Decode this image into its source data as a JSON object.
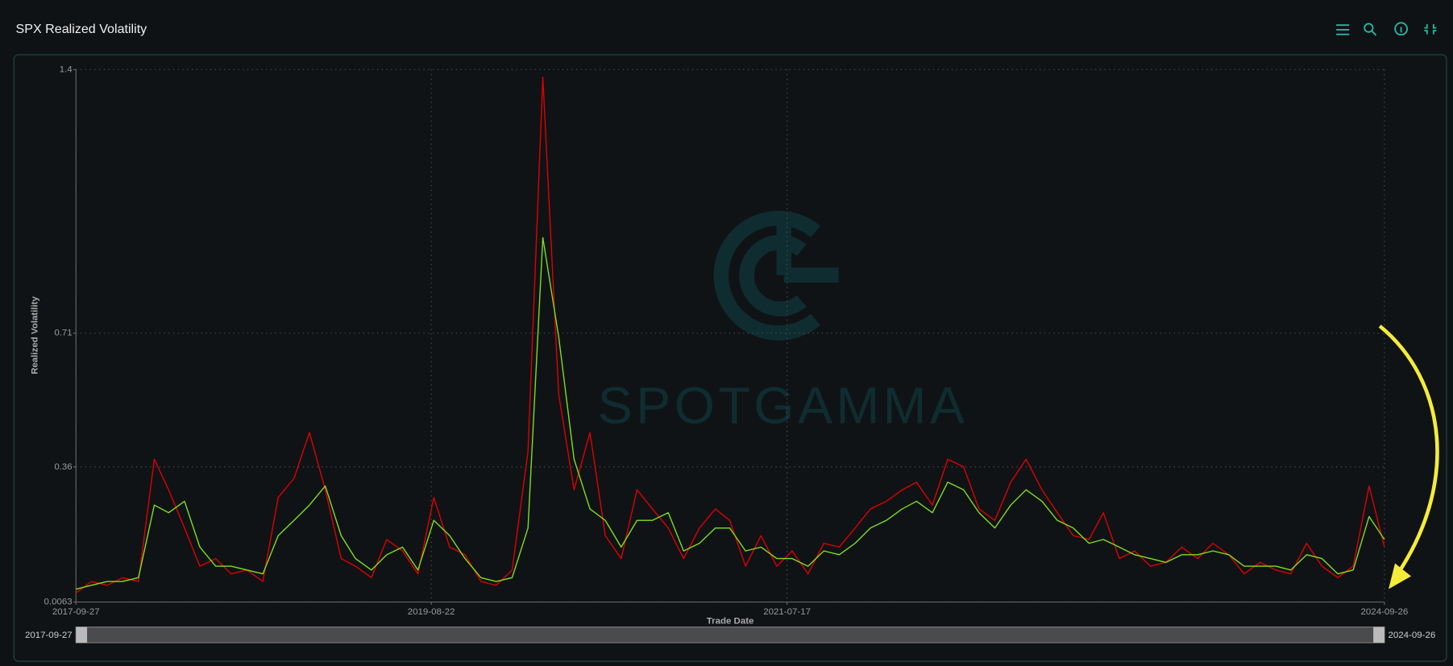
{
  "chart_data": {
    "type": "line",
    "title": "SPX Realized Volatility",
    "xlabel": "Trade Date",
    "ylabel": "Realized Volatility",
    "watermark": "SPOTGAMMA",
    "x": [
      "2017-09-27",
      "2017-10-27",
      "2017-11-27",
      "2017-12-27",
      "2018-01-27",
      "2018-02-27",
      "2018-03-27",
      "2018-04-27",
      "2018-05-27",
      "2018-06-27",
      "2018-07-27",
      "2018-08-27",
      "2018-09-27",
      "2018-10-27",
      "2018-11-27",
      "2018-12-27",
      "2019-01-27",
      "2019-02-27",
      "2019-03-27",
      "2019-04-27",
      "2019-05-27",
      "2019-06-27",
      "2019-07-27",
      "2019-08-27",
      "2019-09-27",
      "2019-10-27",
      "2019-11-27",
      "2019-12-27",
      "2020-01-27",
      "2020-02-27",
      "2020-03-27",
      "2020-04-27",
      "2020-05-27",
      "2020-06-27",
      "2020-07-27",
      "2020-08-27",
      "2020-09-27",
      "2020-10-27",
      "2020-11-27",
      "2020-12-27",
      "2021-01-27",
      "2021-02-27",
      "2021-03-27",
      "2021-04-27",
      "2021-05-27",
      "2021-06-27",
      "2021-07-27",
      "2021-08-27",
      "2021-09-27",
      "2021-10-27",
      "2021-11-27",
      "2021-12-27",
      "2022-01-27",
      "2022-02-27",
      "2022-03-27",
      "2022-04-27",
      "2022-05-27",
      "2022-06-27",
      "2022-07-27",
      "2022-08-27",
      "2022-09-27",
      "2022-10-27",
      "2022-11-27",
      "2022-12-27",
      "2023-01-27",
      "2023-02-27",
      "2023-03-27",
      "2023-04-27",
      "2023-05-27",
      "2023-06-27",
      "2023-07-27",
      "2023-08-27",
      "2023-09-27",
      "2023-10-27",
      "2023-11-27",
      "2023-12-27",
      "2024-01-27",
      "2024-02-27",
      "2024-03-27",
      "2024-04-27",
      "2024-05-27",
      "2024-06-27",
      "2024-07-27",
      "2024-08-27",
      "2024-09-26"
    ],
    "series": [
      {
        "color": "#e00000",
        "values": [
          0.03,
          0.06,
          0.05,
          0.07,
          0.06,
          0.38,
          0.3,
          0.2,
          0.1,
          0.12,
          0.08,
          0.09,
          0.06,
          0.28,
          0.33,
          0.45,
          0.3,
          0.12,
          0.1,
          0.07,
          0.17,
          0.14,
          0.08,
          0.28,
          0.15,
          0.13,
          0.06,
          0.05,
          0.09,
          0.4,
          1.38,
          0.55,
          0.3,
          0.45,
          0.18,
          0.12,
          0.3,
          0.25,
          0.2,
          0.12,
          0.2,
          0.25,
          0.22,
          0.1,
          0.18,
          0.1,
          0.14,
          0.08,
          0.16,
          0.15,
          0.2,
          0.25,
          0.27,
          0.3,
          0.32,
          0.26,
          0.38,
          0.36,
          0.25,
          0.22,
          0.32,
          0.38,
          0.3,
          0.24,
          0.18,
          0.17,
          0.24,
          0.12,
          0.14,
          0.1,
          0.11,
          0.15,
          0.12,
          0.16,
          0.13,
          0.08,
          0.11,
          0.09,
          0.08,
          0.16,
          0.1,
          0.07,
          0.1,
          0.31,
          0.15
        ]
      },
      {
        "color": "#7ee01f",
        "values": [
          0.04,
          0.05,
          0.06,
          0.06,
          0.07,
          0.26,
          0.24,
          0.27,
          0.15,
          0.1,
          0.1,
          0.09,
          0.08,
          0.18,
          0.22,
          0.26,
          0.31,
          0.18,
          0.12,
          0.09,
          0.13,
          0.15,
          0.09,
          0.22,
          0.18,
          0.12,
          0.07,
          0.06,
          0.07,
          0.2,
          0.96,
          0.7,
          0.38,
          0.25,
          0.22,
          0.15,
          0.22,
          0.22,
          0.24,
          0.14,
          0.16,
          0.2,
          0.2,
          0.14,
          0.15,
          0.12,
          0.12,
          0.1,
          0.14,
          0.13,
          0.16,
          0.2,
          0.22,
          0.25,
          0.27,
          0.24,
          0.32,
          0.3,
          0.24,
          0.2,
          0.26,
          0.3,
          0.27,
          0.22,
          0.2,
          0.16,
          0.17,
          0.15,
          0.13,
          0.12,
          0.11,
          0.13,
          0.13,
          0.14,
          0.13,
          0.1,
          0.1,
          0.1,
          0.09,
          0.13,
          0.12,
          0.08,
          0.09,
          0.23,
          0.17
        ]
      }
    ],
    "xlim": [
      "2017-09-27",
      "2024-09-26"
    ],
    "xticks": [
      "2017-09-27",
      "2019-08-22",
      "2021-07-17",
      "2024-09-26"
    ],
    "ylim": [
      0.0063,
      1.4
    ],
    "yticks": [
      0.0063,
      0.36,
      0.71,
      1.4
    ],
    "grid": true
  }
}
